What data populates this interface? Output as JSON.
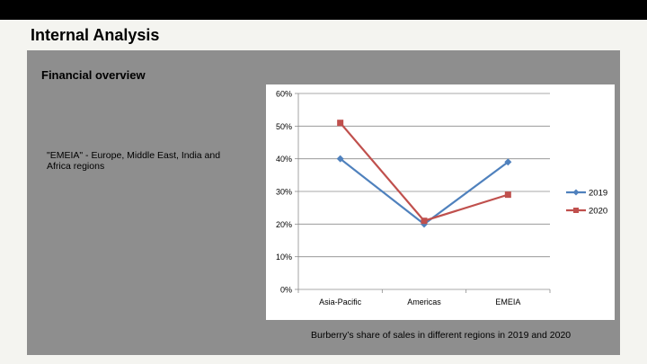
{
  "slide": {
    "title": "Internal Analysis",
    "section_title": "Financial overview",
    "note": "\"EMEIA\" - Europe, Middle East, India and Africa regions",
    "caption": "Burberry’s share of sales in different regions in 2019 and 2020"
  },
  "colors": {
    "topbar": "#000000",
    "panel": "#8e8e8e",
    "series_2019": "#4f81bd",
    "series_2020": "#c0504d"
  },
  "chart_data": {
    "type": "line",
    "title": "",
    "xlabel": "",
    "ylabel": "",
    "categories": [
      "Asia-Pacific",
      "Americas",
      "EMEIA"
    ],
    "series": [
      {
        "name": "2019",
        "values": [
          40,
          20,
          39
        ],
        "color": "#4f81bd",
        "marker": "diamond"
      },
      {
        "name": "2020",
        "values": [
          51,
          21,
          29
        ],
        "color": "#c0504d",
        "marker": "square"
      }
    ],
    "ylim": [
      0,
      60
    ],
    "yticks": [
      "0%",
      "10%",
      "20%",
      "30%",
      "40%",
      "50%",
      "60%"
    ],
    "grid": true,
    "legend_position": "right"
  }
}
